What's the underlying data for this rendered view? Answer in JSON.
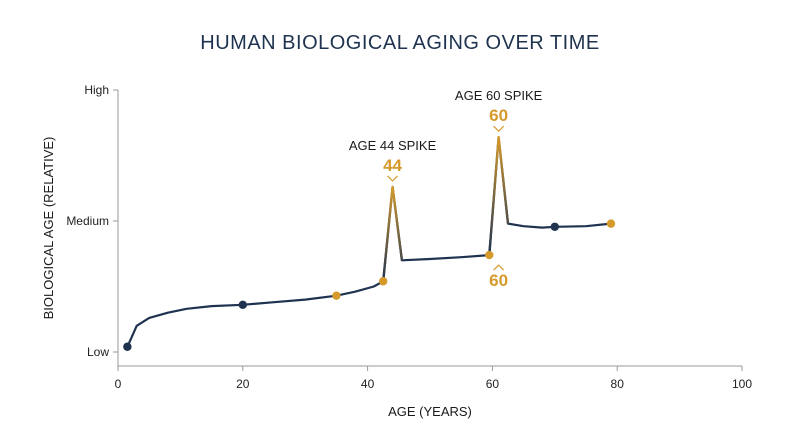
{
  "chart_data": {
    "type": "line",
    "title": "HUMAN BIOLOGICAL AGING OVER TIME",
    "xlabel": "AGE (YEARS)",
    "ylabel": "BIOLOGICAL AGE (RELATIVE)",
    "xlim": [
      0,
      100
    ],
    "ylim": [
      0,
      1
    ],
    "x_ticks": [
      0,
      20,
      40,
      60,
      80,
      100
    ],
    "y_ticks": [
      {
        "value": 0,
        "label": "Low"
      },
      {
        "value": 0.5,
        "label": "Medium"
      },
      {
        "value": 1,
        "label": "High"
      }
    ],
    "grid": false,
    "series": [
      {
        "x": [
          1.5,
          3,
          5,
          8,
          11,
          15,
          20,
          25,
          30,
          35,
          38,
          41,
          42.5,
          44,
          45.5,
          50,
          55,
          59.5,
          61,
          62.5,
          65,
          68,
          70,
          75,
          79
        ],
        "y": [
          0.02,
          0.1,
          0.13,
          0.15,
          0.165,
          0.175,
          0.18,
          0.19,
          0.2,
          0.215,
          0.23,
          0.25,
          0.27,
          0.63,
          0.35,
          0.355,
          0.362,
          0.37,
          0.82,
          0.49,
          0.48,
          0.475,
          0.478,
          0.48,
          0.49
        ]
      }
    ],
    "markers": [
      {
        "x": 1.5,
        "y": 0.02,
        "color": "#1f3350"
      },
      {
        "x": 20,
        "y": 0.18,
        "color": "#1f3350"
      },
      {
        "x": 35,
        "y": 0.215,
        "color": "#d59a2c"
      },
      {
        "x": 42.5,
        "y": 0.27,
        "color": "#d59a2c"
      },
      {
        "x": 59.5,
        "y": 0.37,
        "color": "#d59a2c"
      },
      {
        "x": 70,
        "y": 0.478,
        "color": "#1f3350"
      },
      {
        "x": 79,
        "y": 0.49,
        "color": "#d59a2c"
      }
    ],
    "annotations": [
      {
        "label": "AGE 44 SPIKE",
        "value": "44",
        "x": 44,
        "y": 0.63,
        "position": "above"
      },
      {
        "label": "AGE 60 SPIKE",
        "value": "60",
        "x": 61,
        "y": 0.82,
        "position": "above"
      },
      {
        "label": "",
        "value": "60",
        "x": 61,
        "y": 0.37,
        "position": "below"
      }
    ],
    "colors": {
      "line": "#1f3350",
      "accent": "#d59a2c",
      "axis": "#9a9a9a",
      "low_label": "#9a9a9a"
    }
  }
}
